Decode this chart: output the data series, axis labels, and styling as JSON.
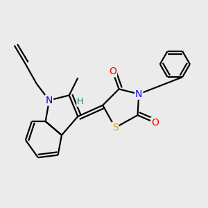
{
  "background_color": "#ebebeb",
  "atom_colors": {
    "C": "#000000",
    "N": "#0000ee",
    "O": "#ff0000",
    "S": "#ccaa00",
    "H": "#008080"
  },
  "bond_color": "#000000",
  "bond_width": 1.6,
  "font_size_atoms": 10,
  "font_size_h": 9,
  "font_size_methyl": 8
}
